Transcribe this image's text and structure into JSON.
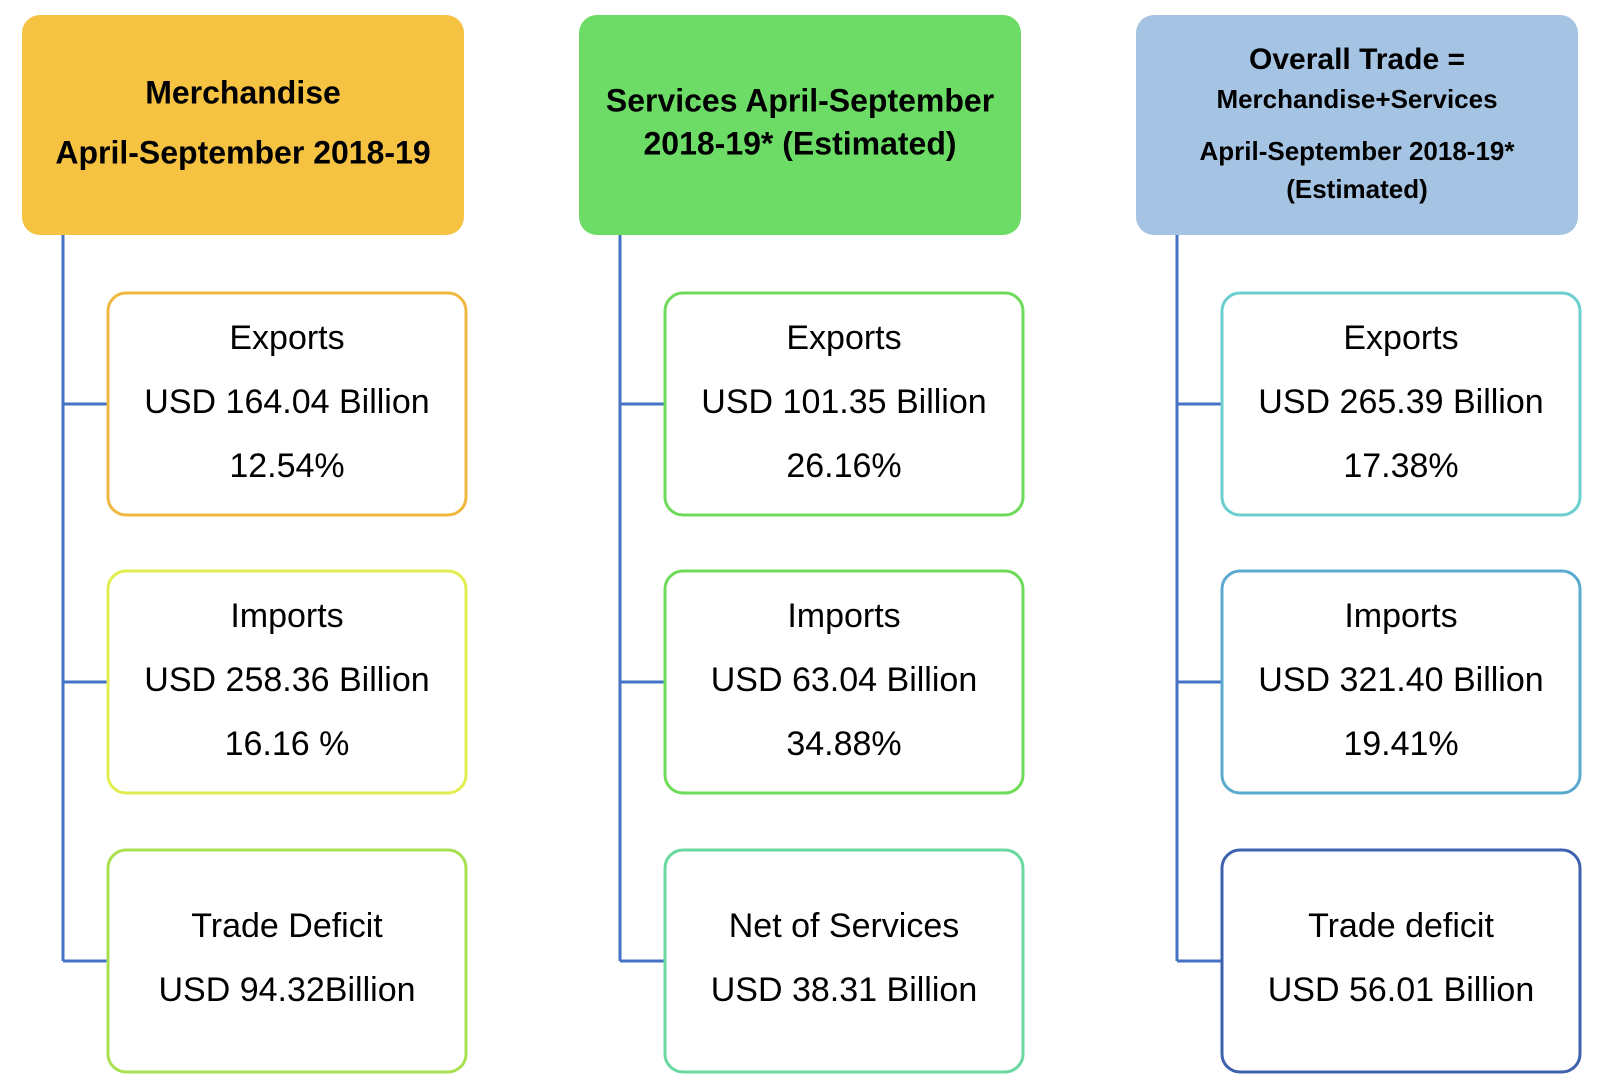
{
  "columns": [
    {
      "header": [
        "Merchandise",
        "April-September 2018-19"
      ],
      "items": [
        {
          "lines": [
            "Exports",
            "USD 164.04 Billion",
            "12.54%"
          ]
        },
        {
          "lines": [
            "Imports",
            "USD 258.36 Billion",
            "16.16 %"
          ]
        },
        {
          "lines": [
            "Trade Deficit",
            "USD 94.32Billion"
          ]
        }
      ]
    },
    {
      "header": [
        "Services April-September",
        "2018-19* (Estimated)"
      ],
      "items": [
        {
          "lines": [
            "Exports",
            "USD 101.35 Billion",
            "26.16%"
          ]
        },
        {
          "lines": [
            "Imports",
            "USD 63.04 Billion",
            "34.88%"
          ]
        },
        {
          "lines": [
            "Net of Services",
            "USD 38.31 Billion"
          ]
        }
      ]
    },
    {
      "header": [
        "Overall Trade =",
        "Merchandise+Services",
        "April-September 2018-19*",
        "(Estimated)"
      ],
      "items": [
        {
          "lines": [
            "Exports",
            "USD 265.39 Billion",
            "17.38%"
          ]
        },
        {
          "lines": [
            "Imports",
            "USD 321.40 Billion",
            "19.41%"
          ]
        },
        {
          "lines": [
            "Trade deficit",
            "USD 56.01 Billion"
          ]
        }
      ]
    }
  ]
}
